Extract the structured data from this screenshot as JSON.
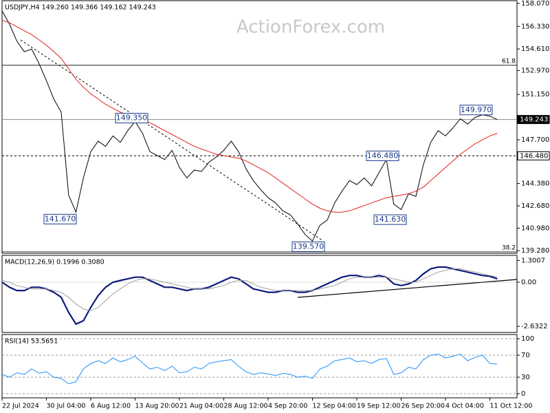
{
  "chart_data": [
    {
      "type": "line",
      "title": "USDJPY,H4  149.260 149.366 149.162 149.243",
      "watermark": "ActionForex.com",
      "ylim": [
        139.07,
        158.28
      ],
      "yticks": [
        {
          "value": 158.07,
          "label": "158.070"
        },
        {
          "value": 156.33,
          "label": "156.330"
        },
        {
          "value": 154.61,
          "label": "154.610"
        },
        {
          "value": 152.97,
          "label": "152.970"
        },
        {
          "value": 151.15,
          "label": "151.150"
        },
        {
          "value": 147.7,
          "label": "147.700"
        },
        {
          "value": 144.38,
          "label": "144.380"
        },
        {
          "value": 142.68,
          "label": "142.680"
        },
        {
          "value": 140.98,
          "label": "140.980"
        },
        {
          "value": 139.28,
          "label": "139.280"
        }
      ],
      "series": [
        {
          "color": "#000000",
          "values": [
            157.5,
            156.5,
            155.2,
            154.4,
            154.6,
            153.5,
            152.2,
            150.8,
            149.8,
            143.5,
            142.2,
            144.8,
            146.8,
            147.6,
            147.2,
            148.0,
            147.5,
            148.4,
            149.1,
            148.2,
            146.8,
            146.5,
            146.2,
            146.9,
            145.6,
            144.8,
            145.4,
            145.3,
            146.0,
            146.4,
            146.9,
            147.6,
            146.8,
            145.5,
            144.6,
            143.9,
            143.3,
            142.9,
            142.3,
            142.0,
            141.3,
            140.5,
            140.0,
            141.2,
            141.6,
            142.9,
            143.8,
            144.6,
            144.3,
            144.8,
            144.2,
            145.2,
            146.2,
            142.8,
            142.4,
            143.6,
            143.4,
            145.8,
            147.5,
            148.4,
            148.0,
            148.6,
            149.3,
            148.9,
            149.4,
            149.6,
            149.5,
            149.24
          ]
        },
        {
          "color": "#e0201b",
          "values": [
            156.8,
            156.6,
            156.3,
            156.0,
            155.7,
            155.3,
            154.9,
            154.4,
            153.9,
            153.1,
            152.3,
            151.7,
            151.2,
            150.8,
            150.4,
            150.1,
            149.8,
            149.6,
            149.4,
            149.2,
            149.0,
            148.7,
            148.4,
            148.1,
            147.8,
            147.5,
            147.2,
            147.0,
            146.8,
            146.6,
            146.5,
            146.4,
            146.3,
            146.1,
            145.8,
            145.5,
            145.2,
            144.8,
            144.4,
            144.0,
            143.6,
            143.2,
            142.8,
            142.5,
            142.3,
            142.2,
            142.2,
            142.3,
            142.5,
            142.7,
            142.9,
            143.1,
            143.3,
            143.4,
            143.5,
            143.6,
            143.8,
            144.1,
            144.6,
            145.1,
            145.6,
            146.1,
            146.6,
            147.0,
            147.4,
            147.7,
            148.0,
            148.2
          ]
        }
      ],
      "levels": [
        {
          "name": "61.8",
          "value": 153.37
        },
        {
          "name": "38.2",
          "value": 139.18
        }
      ],
      "price_markers": [
        {
          "value": 149.243,
          "label": "149.243",
          "style": "current"
        },
        {
          "value": 146.48,
          "label": "146.480",
          "style": "dashed"
        }
      ],
      "annotations": [
        {
          "value": 149.35,
          "label": "149.350"
        },
        {
          "value": 141.67,
          "label": "141.670"
        },
        {
          "value": 139.57,
          "label": "139.570"
        },
        {
          "value": 146.48,
          "label": "146.480"
        },
        {
          "value": 141.63,
          "label": "141.630"
        },
        {
          "value": 149.97,
          "label": "149.970"
        }
      ]
    },
    {
      "type": "line",
      "title": "MACD(12,26,9) 0.1996 0.3080",
      "ylim": [
        -3.0,
        1.6
      ],
      "zero_line": true,
      "yticks": [
        1.3007,
        {
          "value": 0,
          "label": "0.00"
        },
        -2.6322
      ],
      "series": [
        {
          "color": "#0a1a7a",
          "width": 2.2,
          "values": [
            0.0,
            -0.3,
            -0.5,
            -0.5,
            -0.3,
            -0.3,
            -0.4,
            -0.6,
            -0.9,
            -1.8,
            -2.5,
            -2.3,
            -1.5,
            -0.8,
            -0.3,
            0.0,
            0.1,
            0.2,
            0.3,
            0.3,
            0.1,
            -0.1,
            -0.3,
            -0.3,
            -0.4,
            -0.5,
            -0.4,
            -0.4,
            -0.3,
            -0.1,
            0.1,
            0.3,
            0.2,
            -0.1,
            -0.4,
            -0.5,
            -0.6,
            -0.6,
            -0.5,
            -0.5,
            -0.6,
            -0.6,
            -0.5,
            -0.3,
            -0.1,
            0.1,
            0.3,
            0.4,
            0.4,
            0.3,
            0.3,
            0.4,
            0.3,
            -0.1,
            -0.2,
            -0.1,
            0.1,
            0.5,
            0.8,
            0.9,
            0.9,
            0.8,
            0.7,
            0.6,
            0.5,
            0.4,
            0.35,
            0.2
          ]
        },
        {
          "color": "#a0a0a0",
          "width": 1,
          "values": [
            0.1,
            0.0,
            -0.2,
            -0.3,
            -0.4,
            -0.4,
            -0.4,
            -0.5,
            -0.6,
            -0.9,
            -1.3,
            -1.6,
            -1.7,
            -1.5,
            -1.1,
            -0.7,
            -0.4,
            -0.1,
            0.1,
            0.2,
            0.2,
            0.1,
            0.0,
            -0.1,
            -0.2,
            -0.3,
            -0.4,
            -0.4,
            -0.4,
            -0.3,
            -0.2,
            0.0,
            0.1,
            0.1,
            -0.1,
            -0.3,
            -0.4,
            -0.5,
            -0.5,
            -0.5,
            -0.5,
            -0.5,
            -0.5,
            -0.4,
            -0.3,
            -0.2,
            0.0,
            0.2,
            0.3,
            0.3,
            0.3,
            0.3,
            0.3,
            0.2,
            0.1,
            0.0,
            0.0,
            0.2,
            0.4,
            0.6,
            0.7,
            0.8,
            0.8,
            0.7,
            0.6,
            0.5,
            0.4,
            0.31
          ]
        }
      ]
    },
    {
      "type": "line",
      "title": "RSI(14) 53.5651",
      "ylim": [
        -7.6,
        107.6
      ],
      "grid": true,
      "yticks": [
        100,
        70,
        30,
        0
      ],
      "categories": [
        "22 Jul 2024",
        null,
        null,
        null,
        null,
        null,
        "30 Jul 04:00",
        null,
        null,
        null,
        null,
        null,
        "6 Aug 12:00",
        null,
        null,
        null,
        null,
        null,
        "13 Aug 20:00",
        null,
        null,
        null,
        null,
        null,
        "21 Aug 04:00",
        null,
        null,
        null,
        null,
        null,
        "28 Aug 12:00",
        null,
        null,
        null,
        null,
        null,
        "4 Sep 20:00",
        null,
        null,
        null,
        null,
        null,
        "12 Sep 04:00",
        null,
        null,
        null,
        null,
        null,
        "19 Sep 12:00",
        null,
        null,
        null,
        null,
        null,
        "26 Sep 20:00",
        null,
        null,
        null,
        null,
        null,
        "4 Oct 04:00",
        null,
        null,
        null,
        null,
        null,
        "11 Oct 12:00",
        null
      ],
      "series": [
        {
          "color": "#1e90ff",
          "width": 1,
          "values": [
            35,
            30,
            38,
            35,
            45,
            37,
            40,
            30,
            28,
            18,
            22,
            45,
            55,
            60,
            55,
            65,
            58,
            62,
            68,
            56,
            45,
            48,
            42,
            50,
            38,
            40,
            48,
            45,
            55,
            58,
            60,
            62,
            50,
            40,
            35,
            38,
            36,
            33,
            37,
            35,
            30,
            32,
            28,
            45,
            50,
            60,
            62,
            65,
            58,
            60,
            55,
            62,
            64,
            35,
            38,
            48,
            45,
            62,
            70,
            72,
            65,
            68,
            72,
            60,
            66,
            70,
            55,
            53.57
          ]
        }
      ]
    }
  ]
}
